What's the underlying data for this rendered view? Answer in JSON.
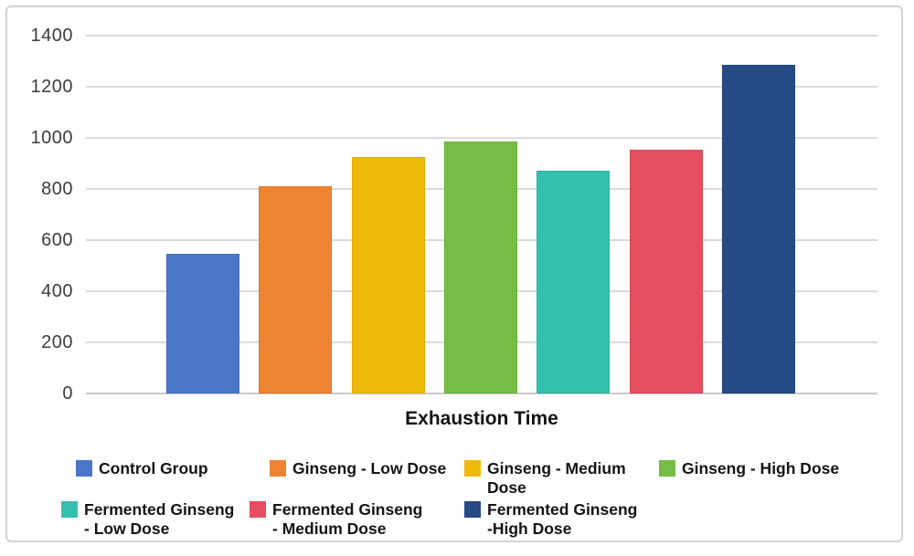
{
  "chart_data": {
    "type": "bar",
    "title": "",
    "xlabel": "Exhaustion Time",
    "ylabel": "",
    "ylim": [
      0,
      1400
    ],
    "yticks": [
      0,
      200,
      400,
      600,
      800,
      1000,
      1200,
      1400
    ],
    "grid": true,
    "legend_position": "bottom",
    "categories": [
      "Control Group",
      "Ginseng - Low Dose",
      "Ginseng - Medium Dose",
      "Ginseng - High Dose",
      "Fermented Ginseng - Low Dose",
      "Fermented Ginseng - Medium Dose",
      "Fermented Ginseng -High Dose"
    ],
    "values": [
      545,
      810,
      925,
      985,
      870,
      955,
      1285
    ],
    "colors": [
      "#4a76c8",
      "#ee8331",
      "#f0ba0b",
      "#75bd44",
      "#34bfae",
      "#e54d61",
      "#254a84"
    ]
  },
  "axis": {
    "x_title": "Exhaustion Time"
  },
  "legend": {
    "rows": [
      [
        {
          "label": "Control Group",
          "color": "#4a76c8"
        },
        {
          "label": "Ginseng - Low Dose",
          "color": "#ee8331"
        },
        {
          "label": "Ginseng - Medium\nDose",
          "color": "#f0ba0b"
        },
        {
          "label": "Ginseng - High Dose",
          "color": "#75bd44"
        }
      ],
      [
        {
          "label": "Fermented Ginseng\n - Low Dose",
          "color": "#34bfae"
        },
        {
          "label": "Fermented Ginseng\n - Medium Dose",
          "color": "#e54d61"
        },
        {
          "label": "Fermented Ginseng\n-High Dose",
          "color": "#254a84"
        }
      ]
    ]
  }
}
